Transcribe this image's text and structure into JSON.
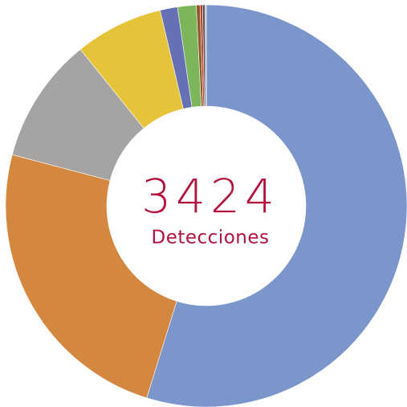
{
  "chart_data": {
    "type": "donut",
    "values": [
      54.8,
      24.3,
      10.1,
      7.1,
      1.4,
      1.5,
      0.3,
      0.2,
      0.2,
      0.1
    ],
    "colors": [
      "#7b96cb",
      "#d4873e",
      "#a5a4a2",
      "#e6c43a",
      "#6670b5",
      "#7cb55a",
      "#8b5a2b",
      "#c0392b",
      "#555555",
      "#b0b0b0"
    ],
    "center_value": 3424,
    "center_label": "Detecciones"
  }
}
